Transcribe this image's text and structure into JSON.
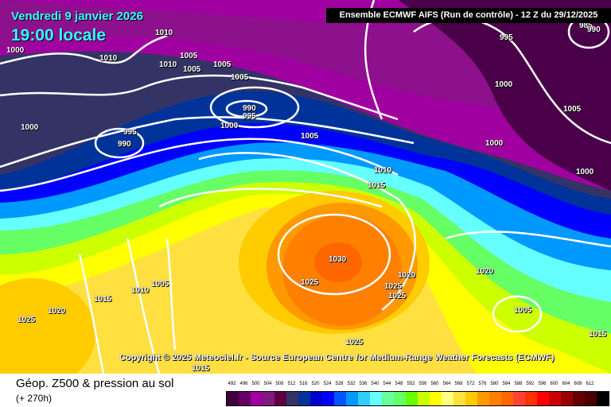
{
  "header": {
    "date": "Vendredi 9 janvier 2026",
    "time": "19:00 locale",
    "run": "Ensemble ECMWF AIFS  (Run de contrôle)  -  12 Z du 29/12/2025"
  },
  "copyright": "Copyright © 2025 Meteociel.fr - Source European Centre for Medium-Range Weather Forecasts (ECMWF)",
  "footer": {
    "title": "Géop. Z500 & pression au sol",
    "lead": "(+ 270h)"
  },
  "isobar_labels": [
    "1010",
    "1000",
    "1010",
    "1005",
    "1010",
    "1005",
    "1005",
    "1005",
    "990",
    "995",
    "1000",
    "995",
    "990",
    "1000",
    "1005",
    "995",
    "1000",
    "1005",
    "1000",
    "1000",
    "1010",
    "1015",
    "1030",
    "1025",
    "1020",
    "1025",
    "1025",
    "1020",
    "1005",
    "1010",
    "1005",
    "1015",
    "1020",
    "1025",
    "1025",
    "1015",
    "1015",
    "985",
    "990"
  ],
  "legend": {
    "values": [
      492,
      496,
      500,
      504,
      508,
      512,
      516,
      520,
      524,
      528,
      532,
      536,
      540,
      544,
      548,
      552,
      556,
      560,
      564,
      568,
      572,
      576,
      580,
      584,
      588,
      592,
      596,
      600,
      604,
      608,
      612
    ],
    "colors": [
      "#400040",
      "#660066",
      "#a000a0",
      "#801a80",
      "#600040",
      "#333366",
      "#003399",
      "#0000cc",
      "#0000ff",
      "#0055ff",
      "#0099ff",
      "#33ccff",
      "#66ffff",
      "#66ff99",
      "#66ff66",
      "#66ff00",
      "#ccff00",
      "#ffff00",
      "#ffff80",
      "#ffe040",
      "#ffcc00",
      "#ff9900",
      "#ff8000",
      "#ff6600",
      "#ff4433",
      "#ff3300",
      "#ff0000",
      "#cc0000",
      "#990000",
      "#660000",
      "#4a0000",
      "#000000"
    ]
  }
}
